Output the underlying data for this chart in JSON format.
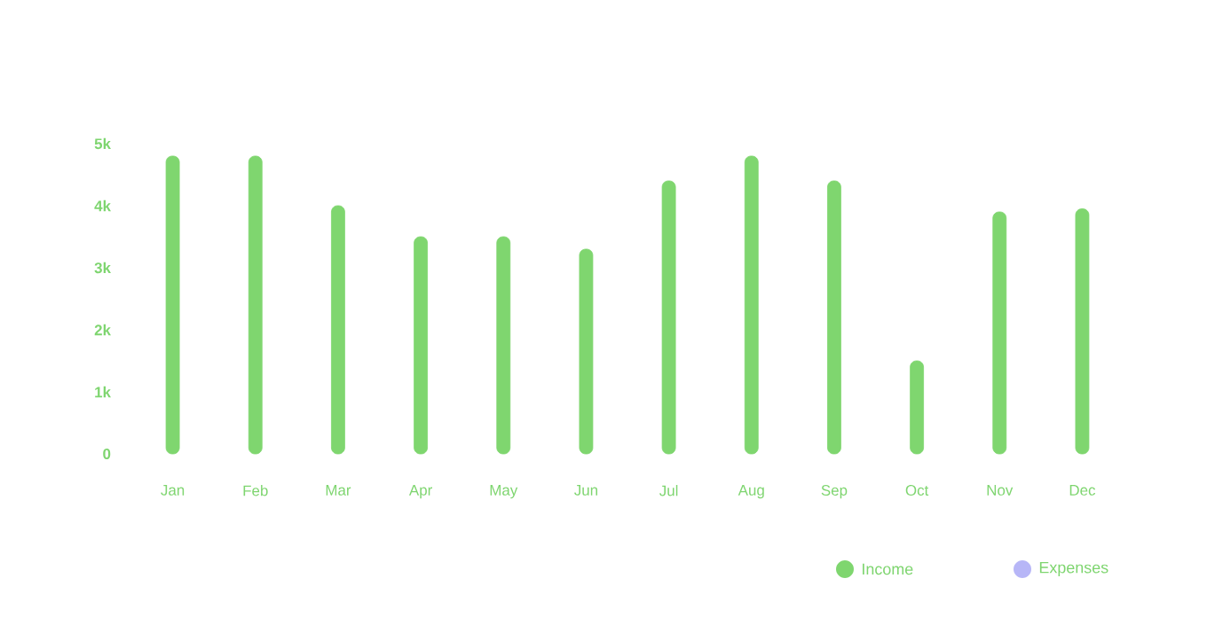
{
  "chart_data": {
    "type": "bar",
    "categories": [
      "Jan",
      "Feb",
      "Mar",
      "Apr",
      "May",
      "Jun",
      "Jul",
      "Aug",
      "Sep",
      "Oct",
      "Nov",
      "Dec"
    ],
    "series": [
      {
        "name": "Income",
        "color": "#7fd66f",
        "values": [
          4800,
          4800,
          4000,
          3500,
          3500,
          3300,
          4400,
          4800,
          4400,
          1500,
          3900,
          3950
        ]
      },
      {
        "name": "Expenses",
        "color": "#b7b6f7",
        "values": [
          null,
          null,
          null,
          null,
          null,
          null,
          null,
          null,
          null,
          null,
          null,
          null
        ]
      }
    ],
    "ylim": [
      0,
      5000
    ],
    "yticks": [
      0,
      {
        "value": 1000,
        "label": "1k"
      },
      {
        "value": 2000,
        "label": "2k"
      },
      {
        "value": 3000,
        "label": "3k"
      },
      {
        "value": 4000,
        "label": "4k"
      },
      {
        "value": 5000,
        "label": "5k"
      }
    ],
    "legend": "bottom right"
  }
}
